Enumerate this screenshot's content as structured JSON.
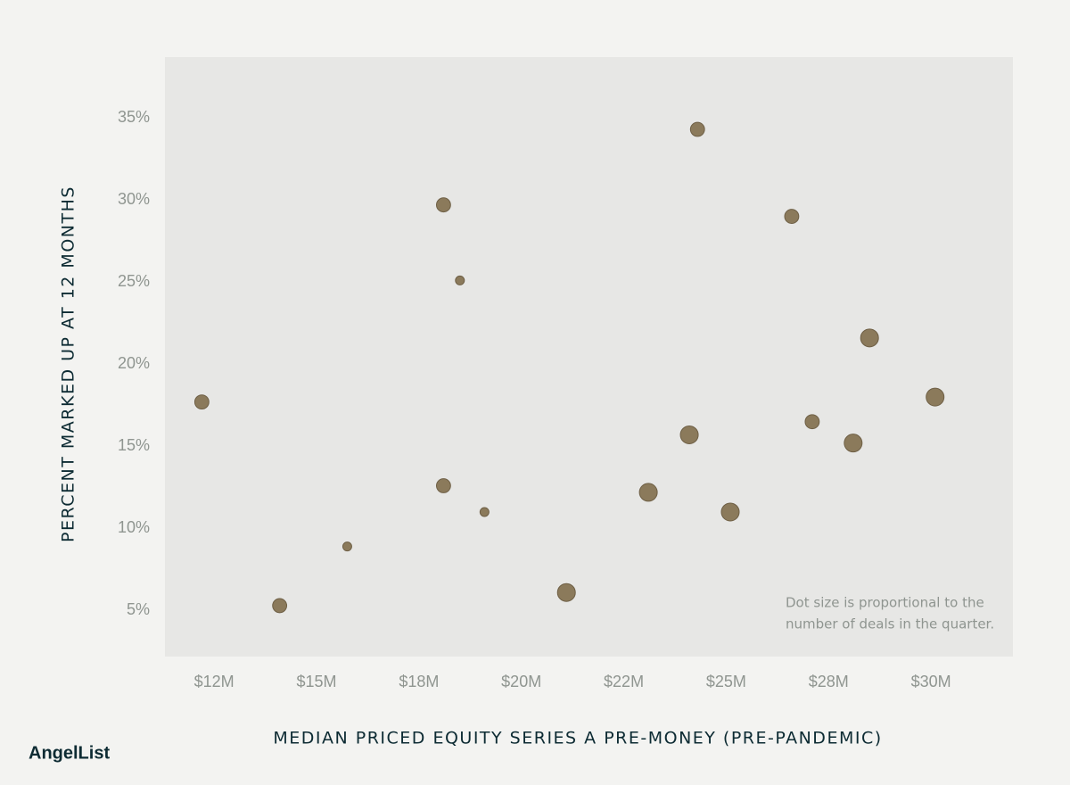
{
  "chart_data": {
    "type": "scatter",
    "x_label": "MEDIAN PRICED EQUITY SERIES A PRE-MONEY (PRE-PANDEMIC)",
    "y_label": "PERCENT MARKED UP AT 12 MONTHS",
    "annotation": [
      "Dot size is proportional to the",
      "number of deals in the quarter."
    ],
    "x": [
      12.2,
      14.1,
      15.75,
      18.1,
      18.5,
      18.1,
      19.1,
      21.1,
      23.1,
      24.3,
      24.1,
      25.1,
      26.6,
      27.1,
      28.1,
      28.5,
      30.1
    ],
    "values": [
      17.7,
      5.3,
      8.9,
      29.7,
      25.1,
      12.6,
      11.0,
      6.1,
      12.2,
      34.3,
      15.7,
      11.0,
      29.0,
      16.5,
      15.2,
      21.6,
      18.0
    ],
    "sizes": [
      2.5,
      2.5,
      1,
      2.5,
      1,
      2.5,
      1,
      4,
      4,
      2.5,
      4,
      4,
      2.5,
      2.5,
      4,
      4,
      4
    ],
    "color": "#8b7a5b",
    "xlim": [
      11.3,
      32.0
    ],
    "ylim": [
      2.2,
      38.7
    ],
    "xticks": [
      {
        "value": 12.5,
        "label": "$12M"
      },
      {
        "value": 15,
        "label": "$15M"
      },
      {
        "value": 17.5,
        "label": "$18M"
      },
      {
        "value": 20,
        "label": "$20M"
      },
      {
        "value": 22.5,
        "label": "$22M"
      },
      {
        "value": 25,
        "label": "$25M"
      },
      {
        "value": 27.5,
        "label": "$28M"
      },
      {
        "value": 30,
        "label": "$30M"
      }
    ],
    "yticks": [
      {
        "value": 5,
        "label": "5%"
      },
      {
        "value": 10,
        "label": "10%"
      },
      {
        "value": 15,
        "label": "15%"
      },
      {
        "value": 20,
        "label": "20%"
      },
      {
        "value": 25,
        "label": "25%"
      },
      {
        "value": 30,
        "label": "30%"
      },
      {
        "value": 35,
        "label": "35%"
      }
    ],
    "grid": false
  },
  "brand": "AngelList"
}
